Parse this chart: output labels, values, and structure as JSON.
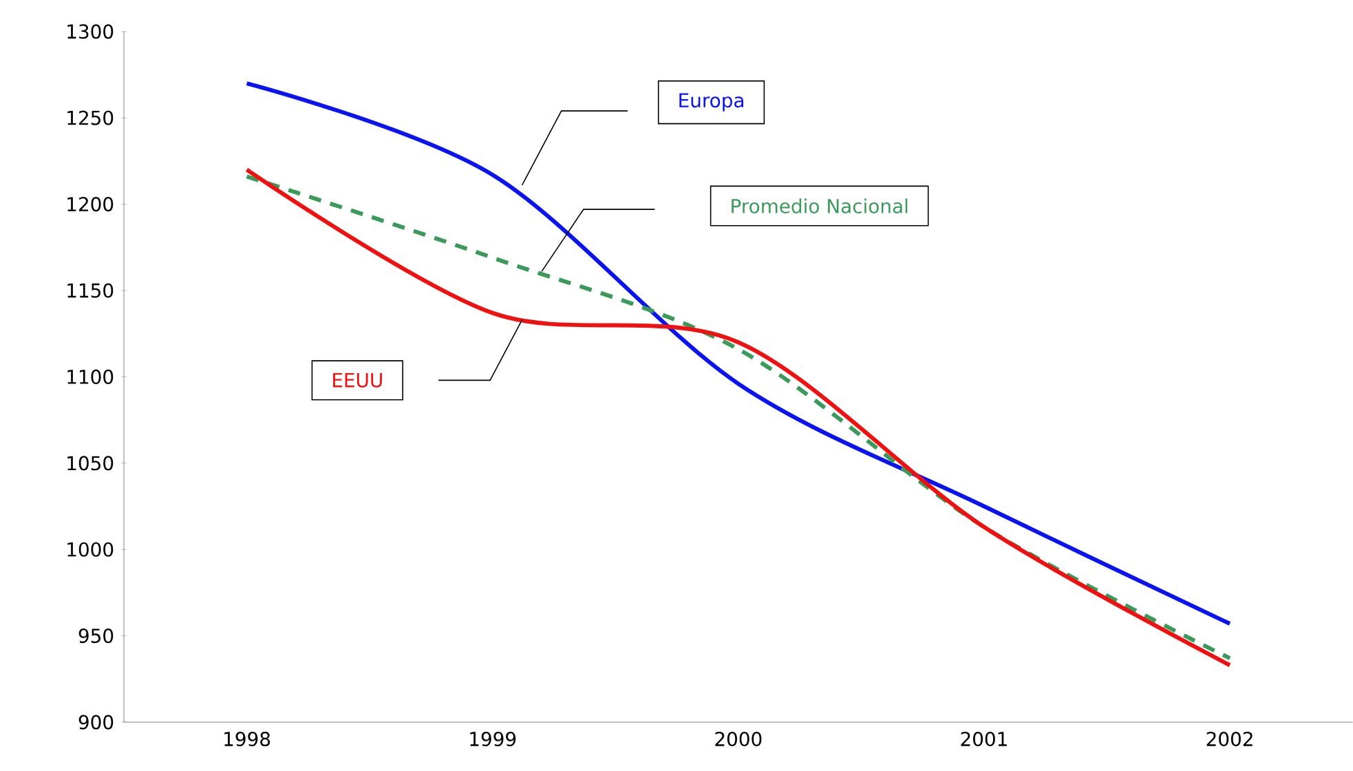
{
  "chart_data": {
    "type": "line",
    "categories": [
      "1998",
      "1999",
      "2000",
      "2001",
      "2002"
    ],
    "series": [
      {
        "name": "Europa",
        "color": "#0a14f0",
        "values": [
          1270,
          1217,
          1096,
          1025,
          957
        ],
        "line_style": "solid"
      },
      {
        "name": "Promedio Nacional",
        "color": "#3a9a5a",
        "values": [
          1216,
          1169,
          1116,
          1013,
          937
        ],
        "line_style": "dashed"
      },
      {
        "name": "EEUU",
        "color": "#f01010",
        "values": [
          1220,
          1137,
          1120,
          1013,
          933
        ],
        "line_style": "solid"
      }
    ],
    "ylim": [
      900,
      1300
    ],
    "yticks": [
      900,
      950,
      1000,
      1050,
      1100,
      1150,
      1200,
      1250,
      1300
    ],
    "grid": false,
    "legend": false,
    "marker": "none"
  }
}
